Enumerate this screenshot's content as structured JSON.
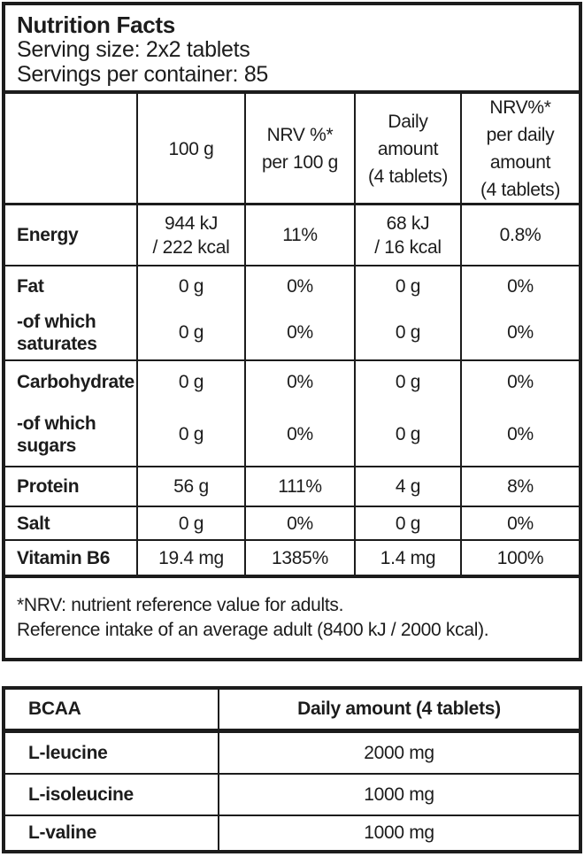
{
  "colors": {
    "ink": "#1c1c1c",
    "background": "#ffffff"
  },
  "header": {
    "title": "Nutrition Facts",
    "serving_size": "Serving size: 2x2 tablets",
    "servings_per_container": "Servings per container: 85"
  },
  "nutrition_table": {
    "column_headers": {
      "blank": "",
      "per_100g": "100 g",
      "nrv_per_100g": "NRV %*\nper 100 g",
      "daily_amount": "Daily\namount\n(4 tablets)",
      "nrv_per_daily": "NRV%*\nper daily\namount\n(4 tablets)"
    },
    "rows": [
      {
        "label": "Energy",
        "per_100g": "944 kJ\n/ 222 kcal",
        "nrv_per_100g": "11%",
        "daily_amount": "68 kJ\n/ 16 kcal",
        "nrv_per_daily": "0.8%"
      },
      {
        "label": "Fat",
        "per_100g": "0 g",
        "nrv_per_100g": "0%",
        "daily_amount": "0 g",
        "nrv_per_daily": "0%"
      },
      {
        "label": "-of which\nsaturates",
        "per_100g": "0 g",
        "nrv_per_100g": "0%",
        "daily_amount": "0 g",
        "nrv_per_daily": "0%"
      },
      {
        "label": "Carbohydrate",
        "per_100g": "0 g",
        "nrv_per_100g": "0%",
        "daily_amount": "0 g",
        "nrv_per_daily": "0%"
      },
      {
        "label": "-of which\nsugars",
        "per_100g": "0 g",
        "nrv_per_100g": "0%",
        "daily_amount": "0 g",
        "nrv_per_daily": "0%"
      },
      {
        "label": "Protein",
        "per_100g": "56 g",
        "nrv_per_100g": "111%",
        "daily_amount": "4 g",
        "nrv_per_daily": "8%"
      },
      {
        "label": "Salt",
        "per_100g": "0 g",
        "nrv_per_100g": "0%",
        "daily_amount": "0 g",
        "nrv_per_daily": "0%"
      },
      {
        "label": "Vitamin B6",
        "per_100g": "19.4 mg",
        "nrv_per_100g": "1385%",
        "daily_amount": "1.4 mg",
        "nrv_per_daily": "100%"
      }
    ]
  },
  "footnote": {
    "line1": "*NRV: nutrient reference value for adults.",
    "line2": "Reference intake of an average adult (8400 kJ / 2000 kcal)."
  },
  "bcaa_table": {
    "header": {
      "label": "BCAA",
      "amount": "Daily amount (4 tablets)"
    },
    "rows": [
      {
        "label": "L-leucine",
        "amount": "2000 mg"
      },
      {
        "label": "L-isoleucine",
        "amount": "1000 mg"
      },
      {
        "label": "L-valine",
        "amount": "1000 mg"
      }
    ]
  }
}
